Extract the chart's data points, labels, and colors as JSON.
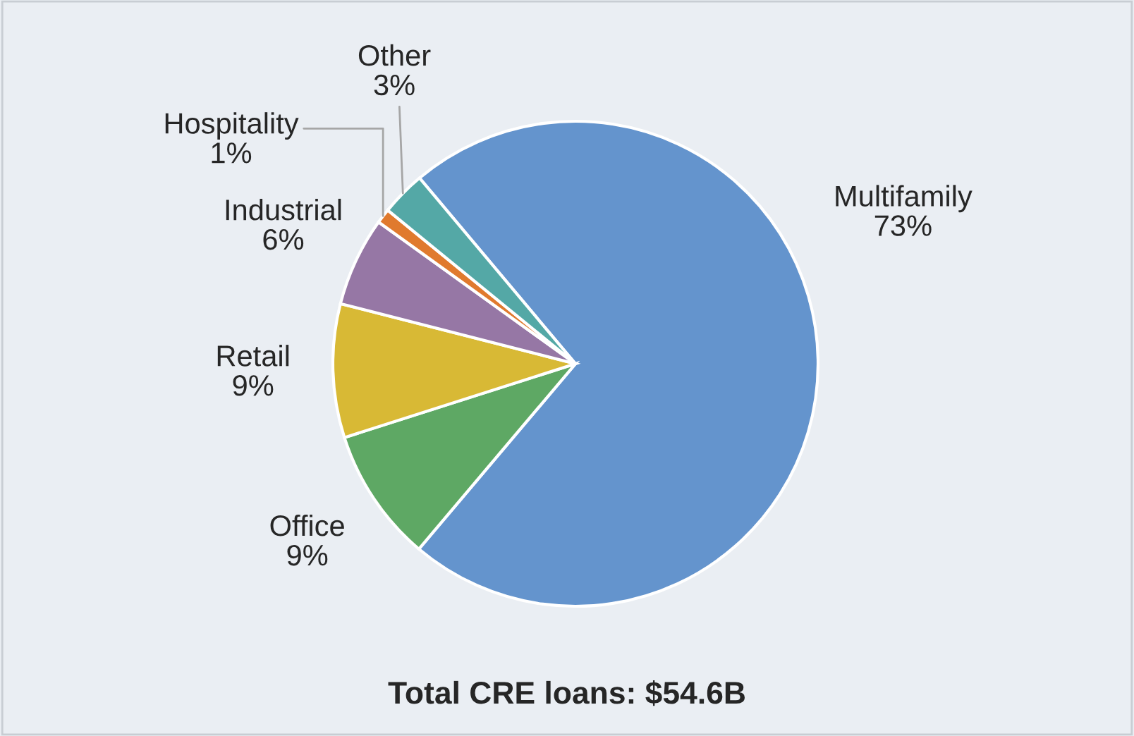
{
  "chart_data": {
    "type": "pie",
    "title": "Total CRE loans: $54.6B",
    "categories": [
      "Multifamily",
      "Office",
      "Retail",
      "Industrial",
      "Hospitality",
      "Other"
    ],
    "values": [
      73,
      9,
      9,
      6,
      1,
      3
    ],
    "colors": [
      "#6494cd",
      "#5ea864",
      "#d8b935",
      "#9677a5",
      "#e07a2e",
      "#54a8a6"
    ],
    "value_labels": [
      "73%",
      "9%",
      "9%",
      "6%",
      "1%",
      "3%"
    ]
  }
}
